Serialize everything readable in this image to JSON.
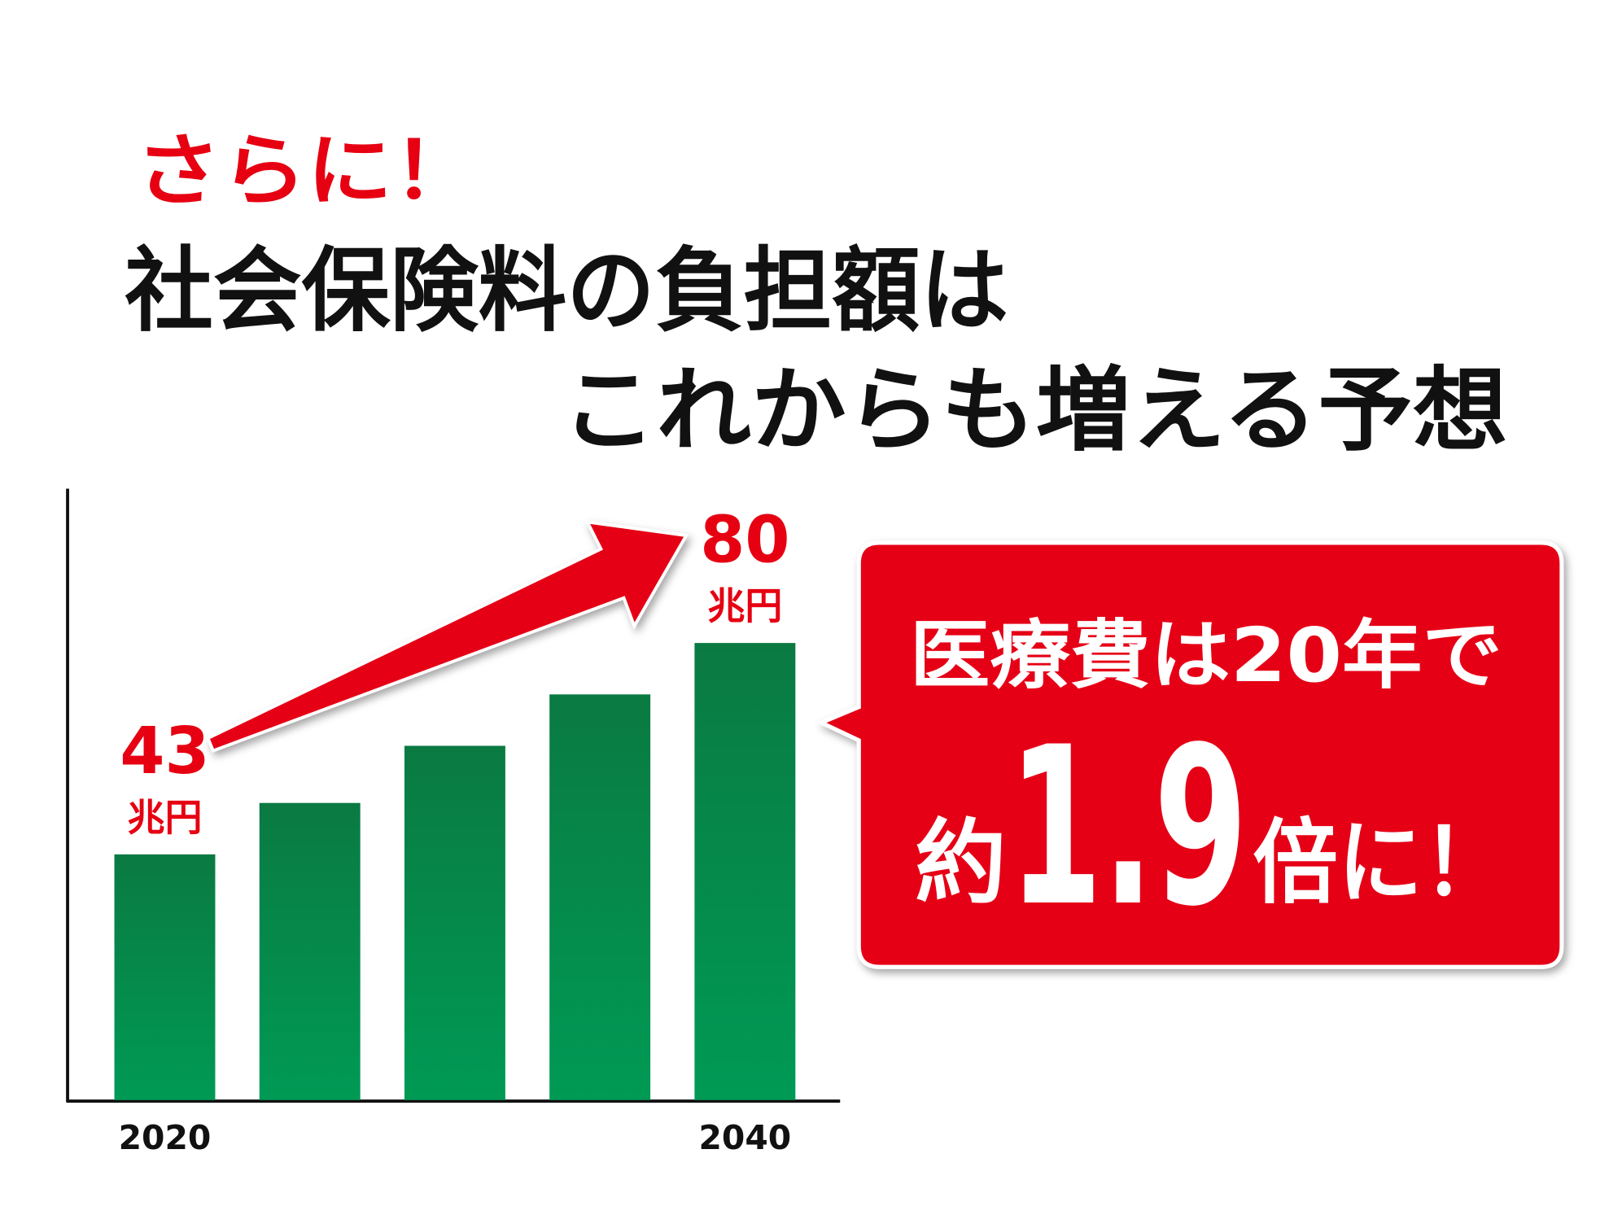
{
  "chart_data": {
    "type": "bar",
    "title": [
      "さらに！",
      "社会保険料の負担額は",
      "これからも増える予想"
    ],
    "categories": [
      "2020",
      null,
      null,
      null,
      "2040"
    ],
    "values": [
      43,
      52,
      62,
      71,
      80
    ],
    "value_labels": [
      "43",
      null,
      null,
      null,
      "80"
    ],
    "value_unit": "兆円",
    "color": "#008a4a",
    "ylim": [
      0,
      107
    ],
    "callout": [
      "医療費は20年で",
      "約",
      "1.9",
      "倍に！"
    ]
  }
}
